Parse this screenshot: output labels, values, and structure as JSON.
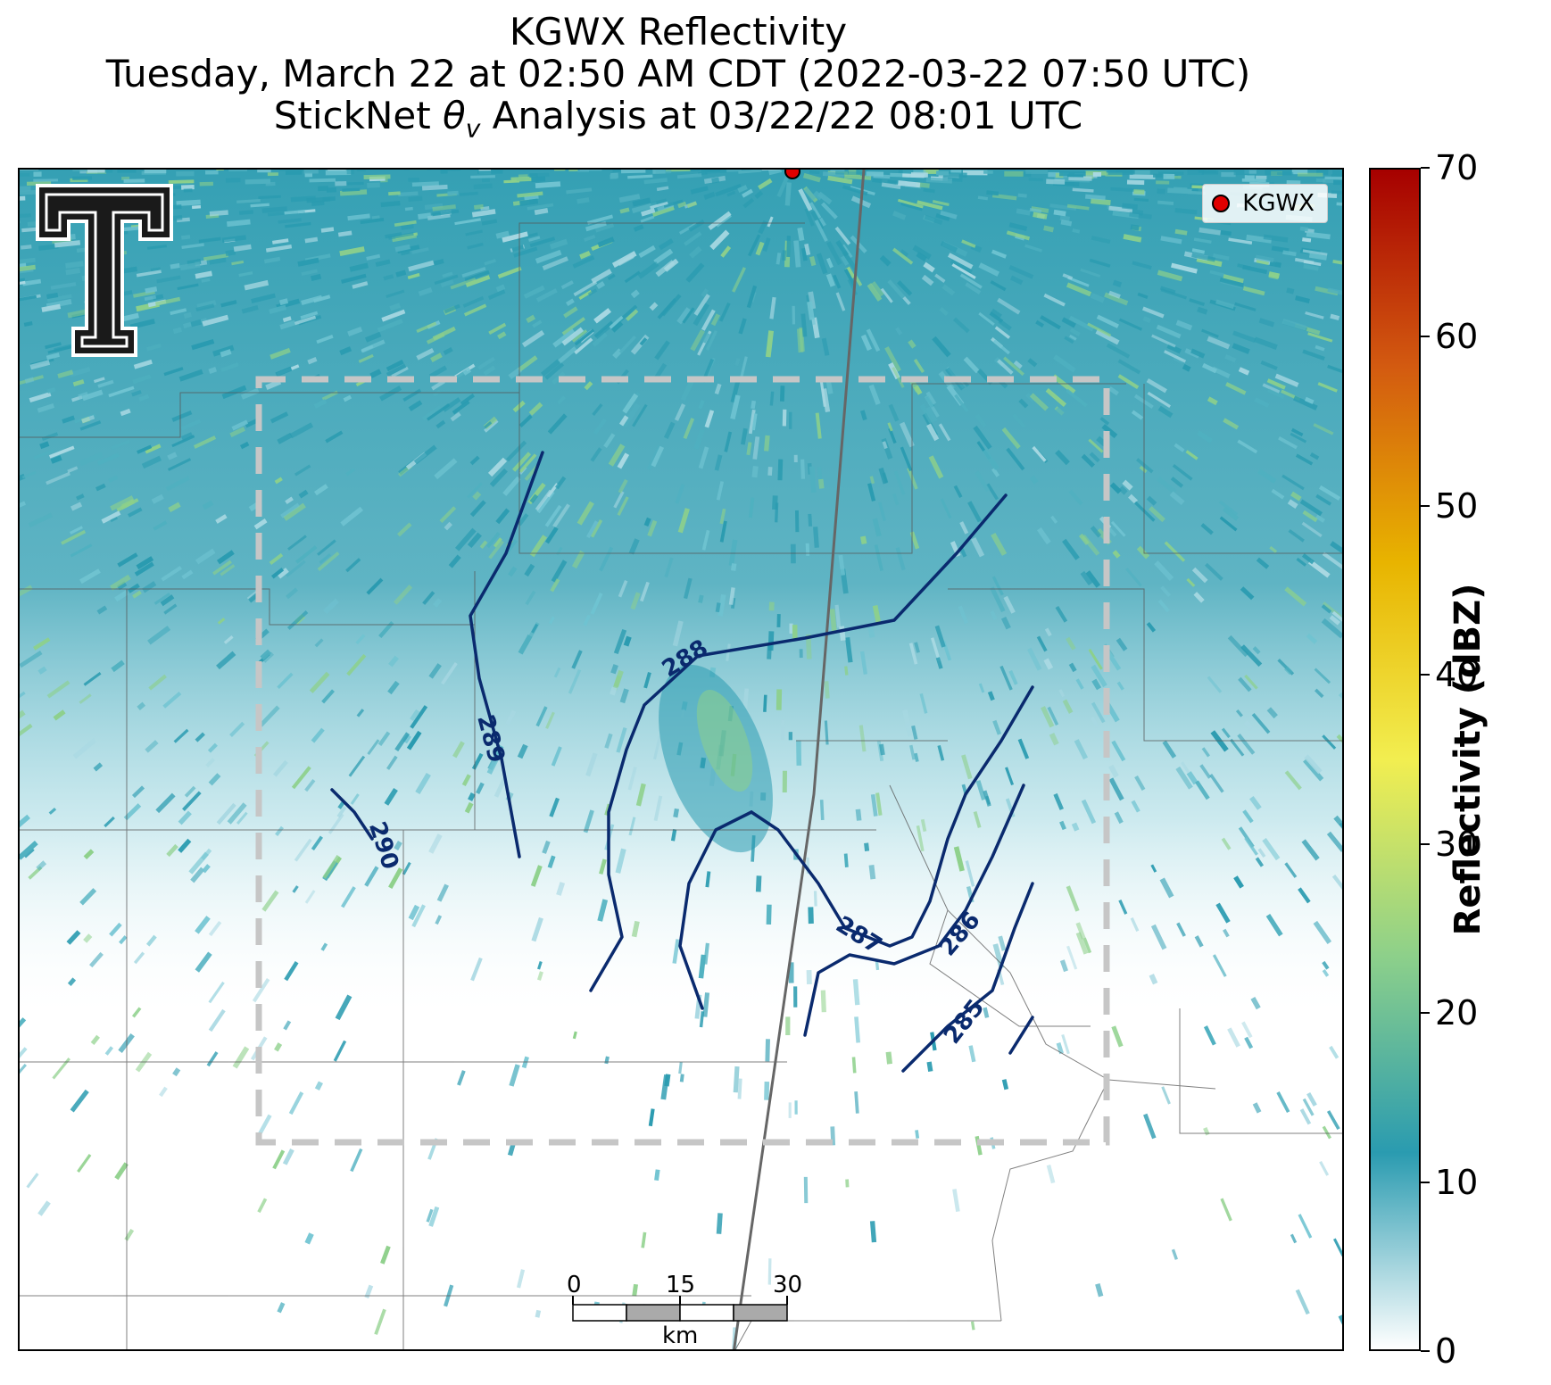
{
  "title": {
    "line1": "KGWX Reflectivity",
    "line2": "Tuesday, March 22 at 02:50 AM CDT (2022-03-22 07:50 UTC)",
    "line3_prefix": "StickNet ",
    "line3_symbol": "θ",
    "line3_sub": "v",
    "line3_suffix": " Analysis at 03/22/22 08:01 UTC"
  },
  "legend": {
    "label": "KGWX"
  },
  "radar_site": {
    "name": "KGWX",
    "marker_color": "#e00000"
  },
  "contours": {
    "color": "#0a2a6e",
    "labels": [
      "285",
      "286",
      "287",
      "288",
      "289",
      "290"
    ]
  },
  "colorbar": {
    "title": "Reflectivity (dBZ)",
    "ticks": [
      "0",
      "10",
      "20",
      "30",
      "40",
      "50",
      "60",
      "70"
    ],
    "min": 0,
    "max": 70,
    "colors": [
      "#ffffff",
      "#2a9bb0",
      "#8dd08a",
      "#f2ee50",
      "#e8b400",
      "#d35a10",
      "#a60000"
    ]
  },
  "scalebar": {
    "ticks": [
      "0",
      "15",
      "30"
    ],
    "unit": "km"
  },
  "logo": {
    "name": "double-t-logo"
  }
}
